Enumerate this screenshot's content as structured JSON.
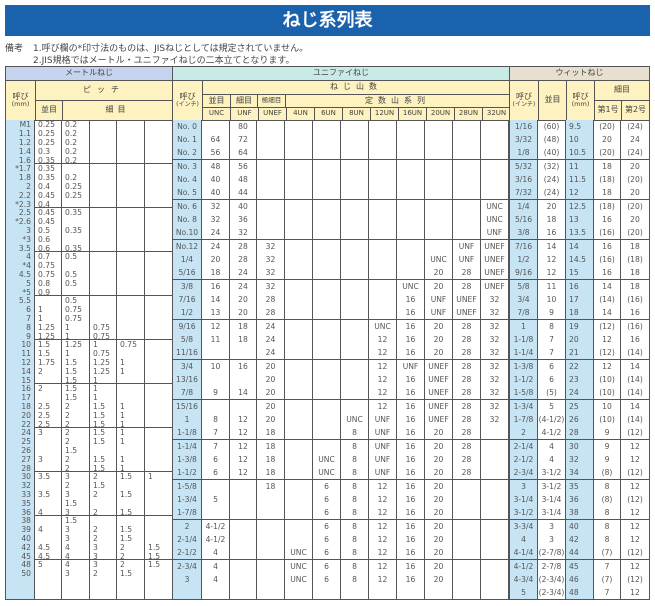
{
  "title": "ねじ系列表",
  "notes": {
    "label": "備考",
    "line1": "1.呼び欄の*印寸法のものは、JISねじとしては規定されていません。",
    "line2": "2.JIS規格ではメートル・ユニファイねじの二本立てとなります。"
  },
  "colors": {
    "title_bg": "#1b62ad",
    "metric_header": "#c5d3ee",
    "unified_header": "#c8ebe8",
    "whitworth_header": "#e8e0cf",
    "subheader": "#fdf2c0",
    "call_column": "#c7e4f5"
  },
  "headers": {
    "metric": {
      "name": "メートルねじ",
      "call": "呼び",
      "call_unit": "(mm)",
      "pitch": "ピッチ",
      "coarse": "並目",
      "fine": "細目"
    },
    "unified": {
      "name": "ユニファイねじ",
      "call": "呼び",
      "call_unit": "(インチ)",
      "threads": "ねじ山数",
      "coarse": "並目",
      "fine": "細目",
      "extra_fine": "極細目",
      "constant": "定数山系列",
      "cols": [
        "UNC",
        "UNF",
        "UNEF",
        "4UN",
        "6UN",
        "8UN",
        "12UN",
        "16UN",
        "20UN",
        "28UN",
        "32UN"
      ]
    },
    "whitworth": {
      "name": "ウィットねじ",
      "call_in": "呼び",
      "call_in_unit": "(インチ)",
      "coarse": "並目",
      "call_mm": "呼び",
      "call_mm_unit": "(mm)",
      "fine": "細目",
      "no1": "第1号",
      "no2": "第2号"
    }
  },
  "metric": [
    [
      [
        "M1",
        "0.25",
        "0.2"
      ],
      [
        "1.1",
        "0.25",
        "0.2"
      ],
      [
        "1.2",
        "0.25",
        "0.2"
      ],
      [
        "1.4",
        "0.3",
        "0.2"
      ],
      [
        "1.6",
        "0.35",
        "0.2"
      ]
    ],
    [
      [
        "*1.7",
        "0.35"
      ],
      [
        "1.8",
        "0.35",
        "0.2"
      ],
      [
        "2",
        "0.4",
        "0.25"
      ],
      [
        "2.2",
        "0.45",
        "0.25"
      ],
      [
        "*2.3",
        "0.4"
      ]
    ],
    [
      [
        "2.5",
        "0.45",
        "0.35"
      ],
      [
        "*2.6",
        "0.45"
      ],
      [
        "3",
        "0.5",
        "0.35"
      ],
      [
        "*3",
        "0.6"
      ],
      [
        "3.5",
        "0.6",
        "0.35"
      ]
    ],
    [
      [
        "4",
        "0.7",
        "0.5"
      ],
      [
        "*4",
        "0.75"
      ],
      [
        "4.5",
        "0.75",
        "0.5"
      ],
      [
        "5",
        "0.8",
        "0.5"
      ],
      [
        "*5",
        "0.9"
      ]
    ],
    [
      [
        "5.5",
        "",
        "0.5"
      ],
      [
        "6",
        "1",
        "0.75"
      ],
      [
        "7",
        "1",
        "0.75"
      ],
      [
        "8",
        "1.25",
        "1",
        "0.75"
      ],
      [
        "9",
        "1.25",
        "1",
        "0.75"
      ]
    ],
    [
      [
        "10",
        "1.5",
        "1.25",
        "1",
        "0.75"
      ],
      [
        "11",
        "1.5",
        "1",
        "0.75"
      ],
      [
        "12",
        "1.75",
        "1.5",
        "1.25",
        "1"
      ],
      [
        "14",
        "2",
        "1.5",
        "1.25",
        "1"
      ],
      [
        "15",
        "",
        "1.5",
        "1"
      ]
    ],
    [
      [
        "16",
        "2",
        "1.5",
        "1"
      ],
      [
        "17",
        "",
        "1.5",
        "1"
      ],
      [
        "18",
        "2.5",
        "2",
        "1.5",
        "1"
      ],
      [
        "20",
        "2.5",
        "2",
        "1.5",
        "1"
      ],
      [
        "22",
        "2.5",
        "2",
        "1.5",
        "1"
      ]
    ],
    [
      [
        "24",
        "3",
        "2",
        "1.5",
        "1"
      ],
      [
        "25",
        "",
        "2",
        "1.5",
        "1"
      ],
      [
        "26",
        "",
        "1.5"
      ],
      [
        "27",
        "3",
        "2",
        "1.5",
        "1"
      ],
      [
        "28",
        "",
        "2",
        "1.5",
        "1"
      ]
    ],
    [
      [
        "30",
        "3.5",
        "3",
        "2",
        "1.5",
        "1"
      ],
      [
        "32",
        "",
        "2",
        "1.5"
      ],
      [
        "33",
        "3.5",
        "3",
        "2",
        "1.5"
      ],
      [
        "35",
        "",
        "1.5"
      ],
      [
        "36",
        "4",
        "3",
        "2",
        "1.5"
      ]
    ],
    [
      [
        "38",
        "",
        "1.5"
      ],
      [
        "39",
        "4",
        "3",
        "2",
        "1.5"
      ],
      [
        "40",
        "",
        "3",
        "2",
        "1.5"
      ],
      [
        "42",
        "4.5",
        "4",
        "3",
        "2",
        "1.5"
      ],
      [
        "45",
        "4.5",
        "4",
        "3",
        "2",
        "1.5"
      ]
    ],
    [
      [
        "48",
        "5",
        "4",
        "3",
        "2",
        "1.5"
      ],
      [
        "50",
        "",
        "3",
        "2",
        "1.5"
      ]
    ]
  ],
  "unified": [
    [
      [
        "No. 0",
        "",
        "80"
      ],
      [
        "No. 1",
        "64",
        "72"
      ],
      [
        "No. 2",
        "56",
        "64"
      ]
    ],
    [
      [
        "No. 3",
        "48",
        "56"
      ],
      [
        "No. 4",
        "40",
        "48"
      ],
      [
        "No. 5",
        "40",
        "44"
      ]
    ],
    [
      [
        "No. 6",
        "32",
        "40",
        "",
        "",
        "",
        "",
        "",
        "",
        "",
        "",
        "UNC"
      ],
      [
        "No. 8",
        "32",
        "36",
        "",
        "",
        "",
        "",
        "",
        "",
        "",
        "",
        "UNC"
      ],
      [
        "No.10",
        "24",
        "32",
        "",
        "",
        "",
        "",
        "",
        "",
        "",
        "",
        "UNF"
      ]
    ],
    [
      [
        "No.12",
        "24",
        "28",
        "32",
        "",
        "",
        "",
        "",
        "",
        "",
        "UNF",
        "UNEF"
      ],
      [
        "1/4",
        "20",
        "28",
        "32",
        "",
        "",
        "",
        "",
        "",
        "UNC",
        "UNF",
        "UNEF"
      ],
      [
        "5/16",
        "18",
        "24",
        "32",
        "",
        "",
        "",
        "",
        "",
        "20",
        "28",
        "UNEF"
      ]
    ],
    [
      [
        "3/8",
        "16",
        "24",
        "32",
        "",
        "",
        "",
        "",
        "UNC",
        "20",
        "28",
        "UNEF"
      ],
      [
        "7/16",
        "14",
        "20",
        "28",
        "",
        "",
        "",
        "",
        "16",
        "UNF",
        "UNEF",
        "32"
      ],
      [
        "1/2",
        "13",
        "20",
        "28",
        "",
        "",
        "",
        "",
        "16",
        "UNF",
        "UNEF",
        "32"
      ]
    ],
    [
      [
        "9/16",
        "12",
        "18",
        "24",
        "",
        "",
        "",
        "UNC",
        "16",
        "20",
        "28",
        "32"
      ],
      [
        "5/8",
        "11",
        "18",
        "24",
        "",
        "",
        "",
        "12",
        "16",
        "20",
        "28",
        "32"
      ],
      [
        "11/16",
        "",
        "",
        "24",
        "",
        "",
        "",
        "12",
        "16",
        "20",
        "28",
        "32"
      ]
    ],
    [
      [
        "3/4",
        "10",
        "16",
        "20",
        "",
        "",
        "",
        "12",
        "UNF",
        "UNEF",
        "28",
        "32"
      ],
      [
        "13/16",
        "",
        "",
        "20",
        "",
        "",
        "",
        "12",
        "16",
        "UNEF",
        "28",
        "32"
      ],
      [
        "7/8",
        "9",
        "14",
        "20",
        "",
        "",
        "",
        "12",
        "16",
        "UNEF",
        "28",
        "32"
      ]
    ],
    [
      [
        "15/16",
        "",
        "",
        "20",
        "",
        "",
        "",
        "12",
        "16",
        "UNEF",
        "28",
        "32"
      ],
      [
        "1",
        "8",
        "12",
        "20",
        "",
        "",
        "UNC",
        "UNF",
        "16",
        "UNEF",
        "28",
        "32"
      ],
      [
        "1-1/8",
        "7",
        "12",
        "18",
        "",
        "",
        "8",
        "UNF",
        "16",
        "20",
        "28",
        ""
      ]
    ],
    [
      [
        "1-1/4",
        "7",
        "12",
        "18",
        "",
        "",
        "8",
        "UNF",
        "16",
        "20",
        "28"
      ],
      [
        "1-3/8",
        "6",
        "12",
        "18",
        "",
        "UNC",
        "8",
        "UNF",
        "16",
        "20",
        "28"
      ],
      [
        "1-1/2",
        "6",
        "12",
        "18",
        "",
        "UNC",
        "8",
        "UNF",
        "16",
        "20",
        "28"
      ]
    ],
    [
      [
        "1-5/8",
        "",
        "",
        "18",
        "",
        "6",
        "8",
        "12",
        "16",
        "20"
      ],
      [
        "1-3/4",
        "5",
        "",
        "",
        "",
        "6",
        "8",
        "12",
        "16",
        "20"
      ],
      [
        "1-7/8",
        "",
        "",
        "",
        "",
        "6",
        "8",
        "12",
        "16",
        "20"
      ]
    ],
    [
      [
        "2",
        "4-1/2",
        "",
        "",
        "",
        "6",
        "8",
        "12",
        "16",
        "20"
      ],
      [
        "2-1/4",
        "4-1/2",
        "",
        "",
        "",
        "6",
        "8",
        "12",
        "16",
        "20"
      ],
      [
        "2-1/2",
        "4",
        "",
        "",
        "UNC",
        "6",
        "8",
        "12",
        "16",
        "20"
      ]
    ],
    [
      [
        "2-3/4",
        "4",
        "",
        "",
        "UNC",
        "6",
        "8",
        "12",
        "16",
        "20"
      ],
      [
        "3",
        "4",
        "",
        "",
        "UNC",
        "6",
        "8",
        "12",
        "16",
        "20"
      ],
      [
        ""
      ]
    ]
  ],
  "whitworth": [
    [
      [
        "1/16",
        "(60)",
        "9.5",
        "(20)",
        "(24)"
      ],
      [
        "3/32",
        "(48)",
        "10",
        "20",
        "24"
      ],
      [
        "1/8",
        "(40)",
        "10.5",
        "(20)",
        "(24)"
      ]
    ],
    [
      [
        "5/32",
        "(32)",
        "11",
        "18",
        "20"
      ],
      [
        "3/16",
        "(24)",
        "11.5",
        "(18)",
        "(20)"
      ],
      [
        "7/32",
        "(24)",
        "12",
        "18",
        "20"
      ]
    ],
    [
      [
        "1/4",
        "20",
        "12.5",
        "(18)",
        "(20)"
      ],
      [
        "5/16",
        "18",
        "13",
        "16",
        "20"
      ],
      [
        "3/8",
        "16",
        "13.5",
        "(16)",
        "(20)"
      ]
    ],
    [
      [
        "7/16",
        "14",
        "14",
        "16",
        "18"
      ],
      [
        "1/2",
        "12",
        "14.5",
        "(16)",
        "(18)"
      ],
      [
        "9/16",
        "12",
        "15",
        "16",
        "18"
      ]
    ],
    [
      [
        "5/8",
        "11",
        "16",
        "14",
        "18"
      ],
      [
        "3/4",
        "10",
        "17",
        "(14)",
        "(16)"
      ],
      [
        "7/8",
        "9",
        "18",
        "14",
        "16"
      ]
    ],
    [
      [
        "1",
        "8",
        "19",
        "(12)",
        "(16)"
      ],
      [
        "1-1/8",
        "7",
        "20",
        "12",
        "16"
      ],
      [
        "1-1/4",
        "7",
        "21",
        "(12)",
        "(14)"
      ]
    ],
    [
      [
        "1-3/8",
        "6",
        "22",
        "12",
        "14"
      ],
      [
        "1-1/2",
        "6",
        "23",
        "(10)",
        "(14)"
      ],
      [
        "1-5/8",
        "(5)",
        "24",
        "(10)",
        "(14)"
      ]
    ],
    [
      [
        "1-3/4",
        "5",
        "25",
        "10",
        "14"
      ],
      [
        "1-7/8",
        "(4-1/2)",
        "26",
        "(10)",
        "(14)"
      ],
      [
        "2",
        "4-1/2",
        "28",
        "9",
        "(12)"
      ]
    ],
    [
      [
        "2-1/4",
        "4",
        "30",
        "9",
        "12"
      ],
      [
        "2-1/2",
        "4",
        "32",
        "9",
        "12"
      ],
      [
        "2-3/4",
        "3-1/2",
        "34",
        "(8)",
        "(12)"
      ]
    ],
    [
      [
        "3",
        "3-1/2",
        "35",
        "8",
        "12"
      ],
      [
        "3-1/4",
        "3-1/4",
        "36",
        "(8)",
        "(12)"
      ],
      [
        "3-1/2",
        "3-1/4",
        "38",
        "8",
        "12"
      ]
    ],
    [
      [
        "3-3/4",
        "3",
        "40",
        "8",
        "12"
      ],
      [
        "4",
        "3",
        "42",
        "8",
        "12"
      ],
      [
        "4-1/4",
        "(2-7/8)",
        "44",
        "(7)",
        "(12)"
      ]
    ],
    [
      [
        "4-1/2",
        "2-7/8",
        "45",
        "7",
        "12"
      ],
      [
        "4-3/4",
        "(2-3/4)",
        "46",
        "(7)",
        "(12)"
      ],
      [
        "5",
        "(2-3/4)",
        "48",
        "7",
        "12"
      ]
    ]
  ]
}
